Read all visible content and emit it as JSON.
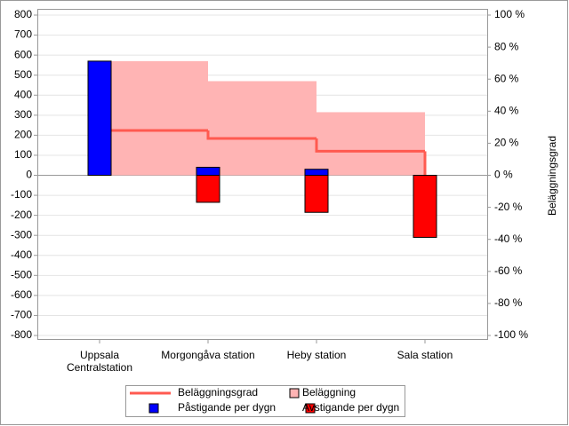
{
  "chart_data": {
    "type": "bar",
    "categories": [
      "Uppsala Centralstation",
      "Morgongåva station",
      "Heby station",
      "Sala station"
    ],
    "series": [
      {
        "name": "Beläggning",
        "type": "area",
        "axis": "y",
        "color": "#ffb4b4",
        "values": [
          570,
          470,
          315,
          0
        ]
      },
      {
        "name": "Beläggningsgrad",
        "type": "line",
        "axis": "y2",
        "color": "#ff5a50",
        "values": [
          28,
          23,
          15,
          0
        ]
      },
      {
        "name": "Påstigande per dygn",
        "type": "bar",
        "axis": "y",
        "color": "#0000ff",
        "values": [
          570,
          40,
          30,
          0
        ]
      },
      {
        "name": "Avstigande per dygn",
        "type": "bar",
        "axis": "y",
        "color": "#ff0000",
        "values": [
          0,
          -135,
          -185,
          -310
        ]
      }
    ],
    "ylim": [
      -800,
      800
    ],
    "yticks": [
      -800,
      -700,
      -600,
      -500,
      -400,
      -300,
      -200,
      -100,
      0,
      100,
      200,
      300,
      400,
      500,
      600,
      700,
      800
    ],
    "y2label": "Beläggningsgrad",
    "y2lim": [
      -100,
      100
    ],
    "y2ticks": [
      {
        "value": -100,
        "label": "-100 %"
      },
      {
        "value": -80,
        "label": "-80 %"
      },
      {
        "value": -60,
        "label": "-60 %"
      },
      {
        "value": -40,
        "label": "-40 %"
      },
      {
        "value": -20,
        "label": "-20 %"
      },
      {
        "value": 0,
        "label": "0 %"
      },
      {
        "value": 20,
        "label": "20 %"
      },
      {
        "value": 40,
        "label": "40 %"
      },
      {
        "value": 60,
        "label": "60 %"
      },
      {
        "value": 80,
        "label": "80 %"
      },
      {
        "value": 100,
        "label": "100 %"
      }
    ],
    "grid": true
  }
}
